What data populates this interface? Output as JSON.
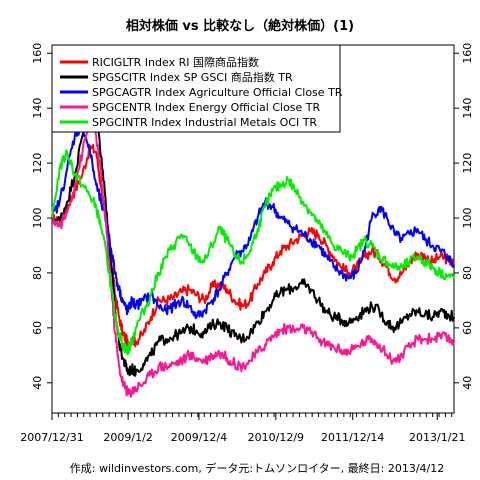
{
  "chart_data": {
    "type": "line",
    "title": "相対株価 vs 比較なし（絶対株価）(1)",
    "note": "作成: wildinvestors.com, データ元:トムソンロイター, 最終日: 2013/4/12",
    "x_tick_labels": [
      "2007/12/31",
      "2009/1/2",
      "2009/12/4",
      "2010/12/9",
      "2011/12/14",
      "2013/1/21"
    ],
    "x_tick_times": [
      0,
      1.0,
      1.93,
      2.94,
      3.95,
      5.06
    ],
    "x_range": [
      0,
      5.28
    ],
    "y_ticks": [
      40,
      60,
      80,
      100,
      120,
      140,
      160
    ],
    "ylim": [
      29,
      163
    ],
    "grid": false,
    "legend_position": "top-left",
    "series": [
      {
        "name": "RICIGLTR Index RI 国際商品指数",
        "color": "#ff0000",
        "t": [
          0,
          0.1,
          0.2,
          0.3,
          0.4,
          0.5,
          0.58,
          0.65,
          0.72,
          0.78,
          0.83,
          0.88,
          0.93,
          0.97,
          1.0,
          1.05,
          1.1,
          1.2,
          1.3,
          1.4,
          1.5,
          1.6,
          1.7,
          1.8,
          1.9,
          2.0,
          2.1,
          2.2,
          2.3,
          2.4,
          2.5,
          2.6,
          2.7,
          2.8,
          2.9,
          3.0,
          3.1,
          3.2,
          3.3,
          3.4,
          3.5,
          3.6,
          3.7,
          3.8,
          3.9,
          4.0,
          4.1,
          4.2,
          4.3,
          4.4,
          4.5,
          4.6,
          4.7,
          4.8,
          4.9,
          5.0,
          5.1,
          5.2,
          5.28
        ],
        "v": [
          100,
          98,
          104,
          110,
          116,
          126,
          124,
          110,
          98,
          84,
          72,
          64,
          58,
          56,
          54,
          56,
          55,
          58,
          64,
          70,
          70,
          71,
          73,
          74,
          72,
          70,
          75,
          76,
          74,
          70,
          68,
          70,
          76,
          80,
          84,
          88,
          90,
          92,
          94,
          95,
          94,
          90,
          86,
          82,
          80,
          82,
          86,
          88,
          86,
          82,
          78,
          80,
          84,
          87,
          86,
          84,
          86,
          85,
          83
        ]
      },
      {
        "name": "SPGSCITR Index SP GSCI 商品指数 TR",
        "color": "#000000",
        "t": [
          0,
          0.1,
          0.2,
          0.3,
          0.4,
          0.5,
          0.58,
          0.65,
          0.72,
          0.78,
          0.83,
          0.88,
          0.93,
          0.97,
          1.0,
          1.05,
          1.1,
          1.2,
          1.3,
          1.4,
          1.5,
          1.6,
          1.7,
          1.8,
          1.9,
          2.0,
          2.1,
          2.2,
          2.3,
          2.4,
          2.5,
          2.6,
          2.7,
          2.8,
          2.9,
          3.0,
          3.1,
          3.2,
          3.3,
          3.4,
          3.5,
          3.6,
          3.7,
          3.8,
          3.9,
          4.0,
          4.1,
          4.2,
          4.3,
          4.4,
          4.5,
          4.6,
          4.7,
          4.8,
          4.9,
          5.0,
          5.1,
          5.2,
          5.28
        ],
        "v": [
          100,
          99,
          106,
          116,
          130,
          142,
          138,
          122,
          102,
          82,
          66,
          55,
          49,
          46,
          44,
          45,
          44,
          47,
          50,
          55,
          56,
          57,
          58,
          60,
          59,
          58,
          61,
          62,
          60,
          57,
          56,
          58,
          62,
          66,
          70,
          73,
          74,
          75,
          76,
          74,
          70,
          66,
          64,
          63,
          62,
          64,
          66,
          68,
          66,
          62,
          60,
          62,
          65,
          66,
          65,
          64,
          66,
          65,
          64
        ]
      },
      {
        "name": "SPGCAGTR Index Agriculture Official Close TR",
        "color": "#0000ff",
        "t": [
          0,
          0.1,
          0.2,
          0.3,
          0.4,
          0.5,
          0.58,
          0.65,
          0.72,
          0.78,
          0.83,
          0.88,
          0.93,
          0.97,
          1.0,
          1.05,
          1.1,
          1.2,
          1.3,
          1.4,
          1.5,
          1.6,
          1.7,
          1.8,
          1.9,
          2.0,
          2.1,
          2.2,
          2.3,
          2.4,
          2.5,
          2.6,
          2.7,
          2.8,
          2.9,
          3.0,
          3.1,
          3.2,
          3.3,
          3.4,
          3.5,
          3.6,
          3.7,
          3.8,
          3.9,
          4.0,
          4.1,
          4.2,
          4.3,
          4.4,
          4.5,
          4.6,
          4.7,
          4.8,
          4.9,
          5.0,
          5.1,
          5.2,
          5.28
        ],
        "v": [
          100,
          106,
          118,
          130,
          134,
          124,
          112,
          105,
          98,
          88,
          80,
          74,
          70,
          67,
          66,
          70,
          68,
          70,
          72,
          68,
          66,
          68,
          70,
          68,
          64,
          66,
          70,
          74,
          80,
          86,
          88,
          92,
          100,
          106,
          104,
          100,
          98,
          96,
          94,
          92,
          90,
          86,
          82,
          80,
          78,
          80,
          88,
          100,
          104,
          100,
          94,
          92,
          94,
          96,
          92,
          90,
          88,
          86,
          82
        ]
      },
      {
        "name": "SPGCENTR Index Energy Official Close TR",
        "color": "#ff1493",
        "t": [
          0,
          0.1,
          0.2,
          0.3,
          0.4,
          0.5,
          0.58,
          0.65,
          0.72,
          0.78,
          0.83,
          0.88,
          0.93,
          0.97,
          1.0,
          1.05,
          1.1,
          1.2,
          1.3,
          1.4,
          1.5,
          1.6,
          1.7,
          1.8,
          1.9,
          2.0,
          2.1,
          2.2,
          2.3,
          2.4,
          2.5,
          2.6,
          2.7,
          2.8,
          2.9,
          3.0,
          3.1,
          3.2,
          3.3,
          3.4,
          3.5,
          3.6,
          3.7,
          3.8,
          3.9,
          4.0,
          4.1,
          4.2,
          4.3,
          4.4,
          4.5,
          4.6,
          4.7,
          4.8,
          4.9,
          5.0,
          5.1,
          5.2,
          5.28
        ],
        "v": [
          100,
          97,
          102,
          112,
          124,
          136,
          130,
          114,
          94,
          74,
          58,
          46,
          40,
          38,
          36,
          37,
          38,
          40,
          43,
          46,
          46,
          47,
          48,
          50,
          49,
          48,
          50,
          51,
          49,
          47,
          46,
          48,
          51,
          54,
          57,
          59,
          60,
          59,
          60,
          58,
          56,
          54,
          53,
          52,
          51,
          53,
          55,
          56,
          54,
          50,
          48,
          50,
          53,
          56,
          56,
          56,
          57,
          56,
          55
        ]
      },
      {
        "name": "SPGCINTR Index Industrial Metals OCI TR",
        "color": "#00ee00",
        "t": [
          0,
          0.1,
          0.2,
          0.3,
          0.4,
          0.5,
          0.58,
          0.65,
          0.72,
          0.78,
          0.83,
          0.88,
          0.93,
          0.97,
          1.0,
          1.05,
          1.1,
          1.2,
          1.3,
          1.4,
          1.5,
          1.6,
          1.7,
          1.8,
          1.9,
          2.0,
          2.1,
          2.2,
          2.3,
          2.4,
          2.5,
          2.6,
          2.7,
          2.8,
          2.9,
          3.0,
          3.1,
          3.2,
          3.3,
          3.4,
          3.5,
          3.6,
          3.7,
          3.8,
          3.9,
          4.0,
          4.1,
          4.2,
          4.3,
          4.4,
          4.5,
          4.6,
          4.7,
          4.8,
          4.9,
          5.0,
          5.1,
          5.2,
          5.28
        ],
        "v": [
          100,
          118,
          124,
          116,
          112,
          108,
          104,
          96,
          86,
          74,
          64,
          58,
          54,
          52,
          52,
          55,
          60,
          66,
          72,
          80,
          86,
          90,
          94,
          90,
          86,
          84,
          90,
          96,
          92,
          86,
          84,
          88,
          96,
          104,
          110,
          112,
          114,
          110,
          106,
          102,
          98,
          94,
          90,
          88,
          86,
          88,
          92,
          90,
          86,
          84,
          82,
          82,
          84,
          86,
          84,
          82,
          80,
          79,
          78
        ]
      }
    ]
  }
}
